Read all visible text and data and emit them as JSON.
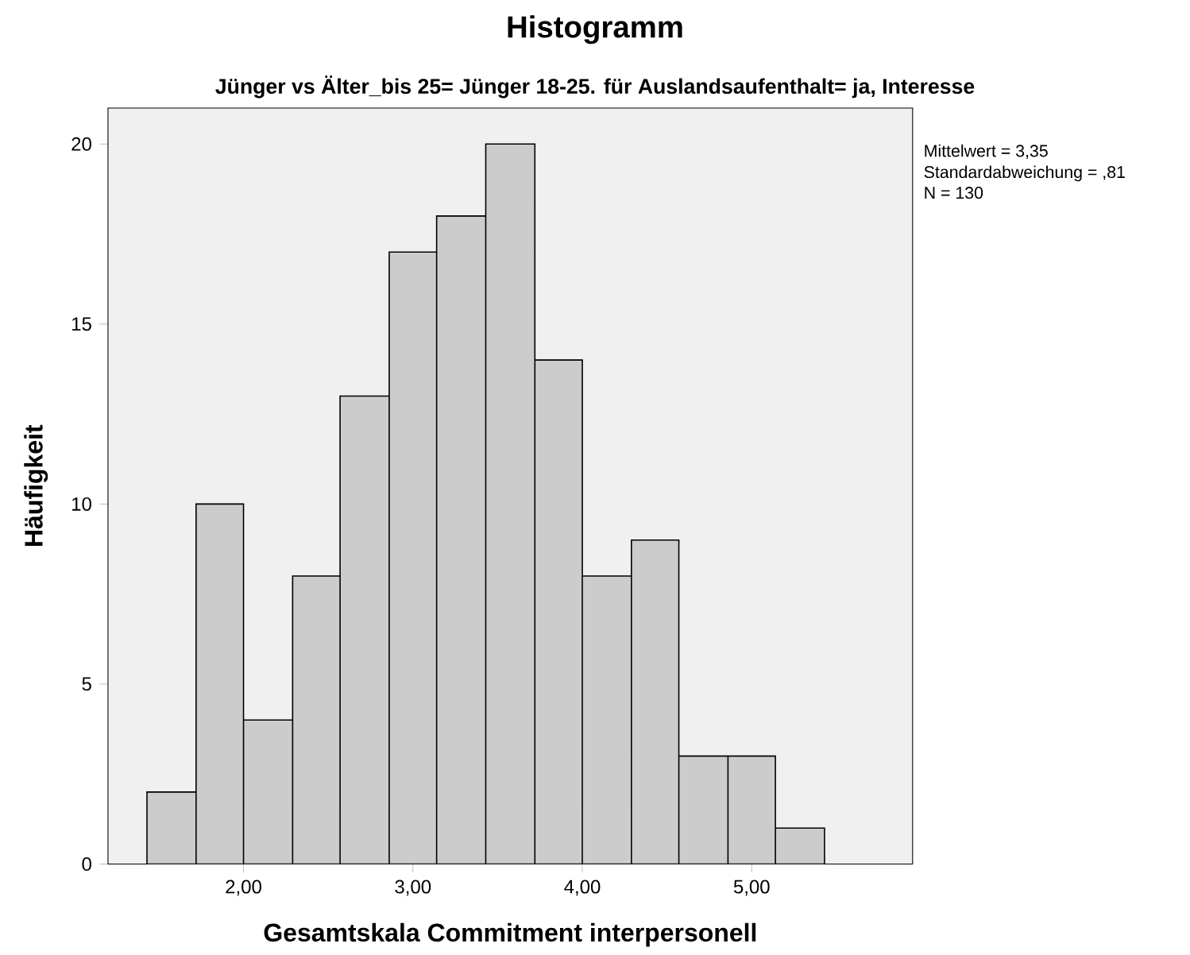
{
  "chart_data": {
    "type": "histogram",
    "title": "Histogramm",
    "subtitle": "Jünger vs Älter_bis 25= Jünger 18-25. für Auslandsaufenthalt= ja, Interesse",
    "xlabel": "Gesamtskala Commitment interpersonell",
    "ylabel": "Häufigkeit",
    "bins": [
      1.43,
      1.72,
      2.0,
      2.29,
      2.57,
      2.86,
      3.14,
      3.43,
      3.72,
      4.0,
      4.29,
      4.57,
      4.86,
      5.14,
      5.43
    ],
    "values": [
      2,
      10,
      4,
      8,
      13,
      17,
      18,
      20,
      14,
      8,
      9,
      3,
      3,
      1
    ],
    "color": "#cccccc",
    "xlim": [
      1.2,
      5.95
    ],
    "ylim": [
      0,
      21
    ],
    "xticks": [
      {
        "value": 2,
        "label": "2,00"
      },
      {
        "value": 3,
        "label": "3,00"
      },
      {
        "value": 4,
        "label": "4,00"
      },
      {
        "value": 5,
        "label": "5,00"
      }
    ],
    "yticks": [
      0,
      5,
      10,
      15,
      20
    ],
    "grid": false,
    "annotations": [
      "Mittelwert = 3,35",
      "Standardabweichung = ,81",
      "N = 130"
    ]
  }
}
